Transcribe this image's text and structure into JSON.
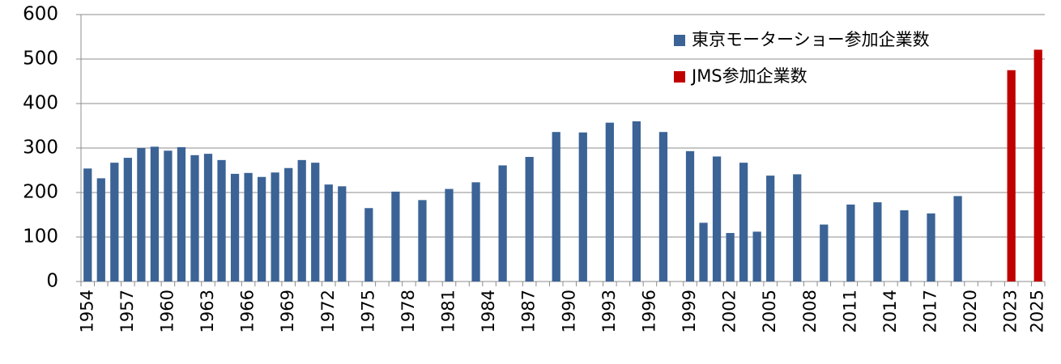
{
  "chart_data": {
    "type": "bar",
    "categories": [
      "1954",
      null,
      null,
      "1957",
      null,
      null,
      "1960",
      null,
      null,
      "1963",
      null,
      null,
      "1966",
      null,
      null,
      "1969",
      null,
      null,
      "1972",
      null,
      null,
      "1975",
      null,
      null,
      "1978",
      null,
      null,
      "1981",
      null,
      null,
      "1984",
      null,
      null,
      "1987",
      null,
      null,
      "1990",
      null,
      null,
      "1993",
      null,
      null,
      "1996",
      null,
      null,
      "1999",
      null,
      null,
      "2002",
      null,
      null,
      "2005",
      null,
      null,
      "2008",
      null,
      null,
      "2011",
      null,
      null,
      "2014",
      null,
      null,
      "2017",
      null,
      null,
      "2020",
      null,
      null,
      "2023",
      null,
      "2025"
    ],
    "series": [
      {
        "name": "東京モーターショー参加企業数",
        "color": "#3b6396",
        "values": [
          254,
          232,
          267,
          278,
          300,
          303,
          294,
          302,
          284,
          287,
          273,
          242,
          244,
          235,
          245,
          255,
          273,
          267,
          218,
          214,
          null,
          165,
          null,
          202,
          null,
          183,
          null,
          208,
          null,
          223,
          null,
          261,
          null,
          280,
          null,
          336,
          null,
          335,
          null,
          357,
          null,
          360,
          null,
          336,
          null,
          293,
          132,
          281,
          109,
          267,
          112,
          238,
          null,
          241,
          null,
          128,
          null,
          173,
          null,
          178,
          null,
          160,
          null,
          153,
          null,
          192,
          null,
          null,
          null,
          null,
          null,
          null
        ]
      },
      {
        "name": "JMS参加企業数",
        "color": "#c00000",
        "values": [
          null,
          null,
          null,
          null,
          null,
          null,
          null,
          null,
          null,
          null,
          null,
          null,
          null,
          null,
          null,
          null,
          null,
          null,
          null,
          null,
          null,
          null,
          null,
          null,
          null,
          null,
          null,
          null,
          null,
          null,
          null,
          null,
          null,
          null,
          null,
          null,
          null,
          null,
          null,
          null,
          null,
          null,
          null,
          null,
          null,
          null,
          null,
          null,
          null,
          null,
          null,
          null,
          null,
          null,
          null,
          null,
          null,
          null,
          null,
          null,
          null,
          null,
          null,
          null,
          null,
          null,
          null,
          null,
          null,
          475,
          null,
          521
        ]
      }
    ],
    "ylim": [
      0,
      600
    ],
    "yticks": [
      0,
      100,
      200,
      300,
      400,
      500,
      600
    ],
    "grid": true,
    "legend": "upper right"
  }
}
